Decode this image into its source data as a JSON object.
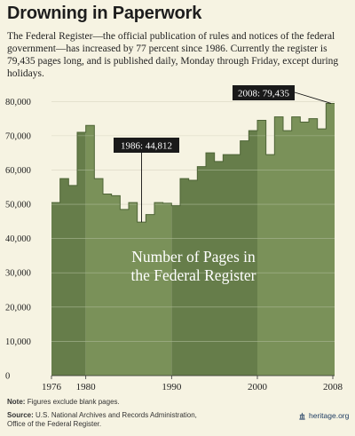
{
  "header": {
    "title": "Drowning in Paperwork",
    "description": "The Federal Register—the official publication of rules and notices of the federal government—has increased by 77 percent since 1986. Currently the register is 79,435 pages long, and is published daily, Monday through Friday, except during holidays."
  },
  "chart_data": {
    "type": "area",
    "title": "",
    "overlay_label_line1": "Number of Pages in",
    "overlay_label_line2": "the Federal Register",
    "x": [
      1976,
      1977,
      1978,
      1979,
      1980,
      1981,
      1982,
      1983,
      1984,
      1985,
      1986,
      1987,
      1988,
      1989,
      1990,
      1991,
      1992,
      1993,
      1994,
      1995,
      1996,
      1997,
      1998,
      1999,
      2000,
      2001,
      2002,
      2003,
      2004,
      2005,
      2006,
      2007,
      2008
    ],
    "y": [
      50500,
      57500,
      55500,
      71000,
      73000,
      57500,
      53000,
      52500,
      48500,
      50500,
      44812,
      47000,
      50500,
      50300,
      49600,
      57500,
      57000,
      61000,
      65000,
      62500,
      64500,
      64500,
      68500,
      71500,
      74500,
      64500,
      75500,
      71500,
      75500,
      74000,
      75000,
      72000,
      79435
    ],
    "xlim": [
      1976,
      2008
    ],
    "ylim": [
      0,
      85000
    ],
    "xticks": [
      "1976",
      "1980",
      "1990",
      "2000",
      "2008"
    ],
    "xtick_values": [
      1976,
      1980,
      1990,
      2000,
      2008
    ],
    "yticks": [
      "0",
      "10,000",
      "20,000",
      "30,000",
      "40,000",
      "50,000",
      "60,000",
      "70,000",
      "80,000"
    ],
    "ytick_values": [
      0,
      10000,
      20000,
      30000,
      40000,
      50000,
      60000,
      70000,
      80000
    ],
    "grid": true,
    "decade_bands": [
      1976,
      1980,
      1990,
      2000,
      2008
    ],
    "annotations": [
      {
        "label": "1986: 44,812",
        "x": 1986,
        "y": 44812
      },
      {
        "label": "2008: 79,435",
        "x": 2008,
        "y": 79435
      }
    ],
    "colors": {
      "band_dark": "#667d4a",
      "band_light": "#7a9159",
      "grid": "#a9b793",
      "background": "#f6f3e2"
    }
  },
  "footer": {
    "note_label": "Note:",
    "note_text": "Figures exclude blank pages.",
    "source_label": "Source:",
    "source_line1": "U.S. National Archives and Records Administration,",
    "source_line2": "Office of the Federal Register.",
    "brand": "heritage.org"
  }
}
